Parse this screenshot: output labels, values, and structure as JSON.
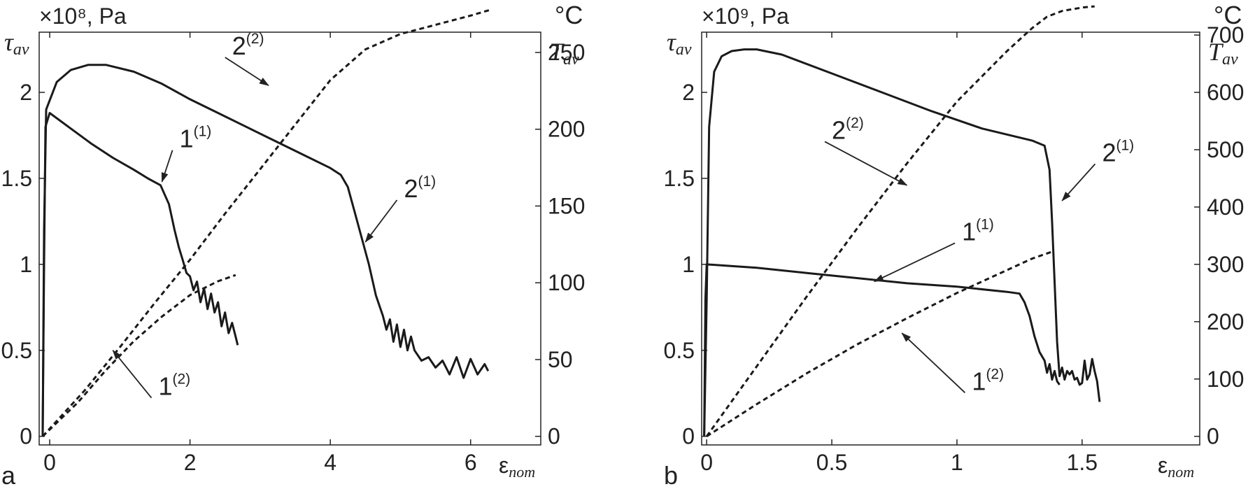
{
  "chart_data": [
    {
      "type": "line",
      "panel_label": "a",
      "left_unit": "×10⁸, Pa",
      "right_unit": "°C",
      "ylabel": "τ_av",
      "y2label": "T_av",
      "xlabel": "ε_nom",
      "xlim": [
        -0.15,
        7.0
      ],
      "ylim": [
        -0.05,
        2.35
      ],
      "y2lim": [
        -5.6,
        263.2
      ],
      "xticks": [
        "0",
        "2",
        "4",
        "6"
      ],
      "yticks": [
        "0",
        "0.5",
        "1",
        "1.5",
        "2"
      ],
      "y2ticks": [
        "0",
        "50",
        "100",
        "150",
        "200",
        "250"
      ],
      "series": [
        {
          "name": "1(1)",
          "axis": "left",
          "style": "solid",
          "x": [
            -0.1,
            -0.08,
            -0.06,
            0.0,
            0.3,
            0.6,
            0.9,
            1.2,
            1.4,
            1.58,
            1.7,
            1.78,
            1.84,
            1.9,
            1.95,
            2.0,
            2.05,
            2.1,
            2.15,
            2.2,
            2.25,
            2.3,
            2.35,
            2.4,
            2.45,
            2.5,
            2.55,
            2.6,
            2.65,
            2.68
          ],
          "y": [
            0.0,
            1.0,
            1.8,
            1.88,
            1.79,
            1.7,
            1.62,
            1.55,
            1.5,
            1.46,
            1.35,
            1.2,
            1.1,
            1.02,
            0.95,
            0.93,
            0.85,
            0.9,
            0.78,
            0.86,
            0.74,
            0.83,
            0.72,
            0.78,
            0.64,
            0.72,
            0.6,
            0.66,
            0.58,
            0.53
          ]
        },
        {
          "name": "2(1)",
          "axis": "left",
          "style": "solid",
          "x": [
            -0.1,
            -0.08,
            -0.05,
            0.1,
            0.3,
            0.55,
            0.8,
            1.2,
            1.6,
            2.0,
            2.4,
            2.8,
            3.2,
            3.6,
            4.0,
            4.15,
            4.25,
            4.35,
            4.45,
            4.55,
            4.65,
            4.75,
            4.8,
            4.85,
            4.9,
            4.95,
            5.0,
            5.05,
            5.1,
            5.15,
            5.2,
            5.3,
            5.4,
            5.5,
            5.6,
            5.7,
            5.8,
            5.9,
            6.0,
            6.1,
            6.2,
            6.25
          ],
          "y": [
            0.0,
            1.2,
            1.9,
            2.06,
            2.13,
            2.16,
            2.16,
            2.12,
            2.05,
            1.96,
            1.88,
            1.8,
            1.72,
            1.64,
            1.56,
            1.52,
            1.45,
            1.3,
            1.15,
            1.0,
            0.82,
            0.7,
            0.62,
            0.68,
            0.55,
            0.65,
            0.52,
            0.62,
            0.5,
            0.58,
            0.5,
            0.44,
            0.46,
            0.4,
            0.44,
            0.36,
            0.46,
            0.34,
            0.45,
            0.36,
            0.42,
            0.38
          ]
        },
        {
          "name": "1(2)",
          "axis": "right",
          "style": "dashed",
          "x": [
            -0.1,
            0.4,
            0.8,
            1.2,
            1.6,
            2.0,
            2.4,
            2.65
          ],
          "y": [
            0,
            22,
            43,
            62,
            78,
            92,
            101,
            105
          ]
        },
        {
          "name": "2(2)",
          "axis": "right",
          "style": "dashed",
          "x": [
            -0.1,
            0.5,
            1.0,
            1.5,
            2.0,
            2.5,
            3.0,
            3.5,
            4.0,
            4.5,
            5.0,
            5.5,
            6.0,
            6.3
          ],
          "y": [
            0,
            30,
            58,
            87,
            115,
            145,
            174,
            203,
            232,
            252,
            262,
            268,
            274,
            278
          ]
        }
      ],
      "annotations": [
        {
          "label": "1",
          "sup": "(1)",
          "tx": 1.85,
          "ty": 1.68,
          "ax": 1.6,
          "ay": 1.48
        },
        {
          "label": "2",
          "sup": "(1)",
          "tx": 5.05,
          "ty": 1.39,
          "ax": 4.5,
          "ay": 1.13
        },
        {
          "label": "2",
          "sup": "(2)",
          "tx": 2.6,
          "ty": 2.22,
          "ax": 3.12,
          "ay": 2.04
        },
        {
          "label": "1",
          "sup": "(2)",
          "tx": 1.55,
          "ty": 0.24,
          "ax": 0.9,
          "ay": 0.5
        }
      ]
    },
    {
      "type": "line",
      "panel_label": "b",
      "left_unit": "×10⁹, Pa",
      "right_unit": "°C",
      "ylabel": "τ_av",
      "y2label": "T_av",
      "xlabel": "ε_nom",
      "xlim": [
        -0.02,
        1.97
      ],
      "ylim": [
        -0.05,
        2.35
      ],
      "y2lim": [
        -15,
        705
      ],
      "xticks": [
        "0",
        "0.5",
        "1",
        "1.5"
      ],
      "yticks": [
        "0",
        "0.5",
        "1",
        "1.5",
        "2"
      ],
      "y2ticks": [
        "0",
        "100",
        "200",
        "300",
        "400",
        "500",
        "600",
        "700"
      ],
      "series": [
        {
          "name": "1(1)",
          "axis": "left",
          "style": "solid",
          "x": [
            -0.01,
            -0.005,
            0.0,
            0.2,
            0.4,
            0.6,
            0.8,
            1.0,
            1.2,
            1.25,
            1.27,
            1.29,
            1.31,
            1.33,
            1.35,
            1.36,
            1.37,
            1.38,
            1.39,
            1.4,
            1.41
          ],
          "y": [
            0.0,
            0.8,
            1.0,
            0.98,
            0.95,
            0.92,
            0.89,
            0.87,
            0.84,
            0.83,
            0.78,
            0.7,
            0.58,
            0.49,
            0.44,
            0.37,
            0.42,
            0.33,
            0.38,
            0.32,
            0.3
          ]
        },
        {
          "name": "2(1)",
          "axis": "left",
          "style": "solid",
          "x": [
            -0.01,
            0.0,
            0.01,
            0.03,
            0.06,
            0.1,
            0.15,
            0.2,
            0.3,
            0.5,
            0.7,
            0.9,
            1.1,
            1.3,
            1.35,
            1.37,
            1.38,
            1.39,
            1.4,
            1.41,
            1.42,
            1.43,
            1.44,
            1.45,
            1.46,
            1.47,
            1.48,
            1.49,
            1.5,
            1.51,
            1.52,
            1.53,
            1.54,
            1.55,
            1.56,
            1.57
          ],
          "y": [
            0.0,
            0.8,
            1.8,
            2.12,
            2.21,
            2.24,
            2.25,
            2.25,
            2.22,
            2.11,
            2.0,
            1.89,
            1.79,
            1.72,
            1.69,
            1.55,
            1.25,
            0.9,
            0.55,
            0.35,
            0.4,
            0.33,
            0.38,
            0.36,
            0.38,
            0.33,
            0.34,
            0.3,
            0.31,
            0.44,
            0.33,
            0.36,
            0.45,
            0.38,
            0.32,
            0.2
          ]
        },
        {
          "name": "1(2)",
          "axis": "right",
          "style": "dashed",
          "x": [
            0.0,
            0.2,
            0.4,
            0.6,
            0.8,
            1.0,
            1.2,
            1.3,
            1.38
          ],
          "y": [
            0,
            56,
            110,
            160,
            206,
            250,
            290,
            310,
            322
          ]
        },
        {
          "name": "2(2)",
          "axis": "right",
          "style": "dashed",
          "x": [
            0.0,
            0.2,
            0.4,
            0.6,
            0.8,
            1.0,
            1.2,
            1.3,
            1.36,
            1.42,
            1.5,
            1.55
          ],
          "y": [
            0,
            122,
            244,
            362,
            476,
            584,
            672,
            712,
            732,
            742,
            748,
            750
          ]
        }
      ],
      "annotations": [
        {
          "label": "2",
          "sup": "(1)",
          "tx": 1.58,
          "ty": 1.6,
          "ax": 1.42,
          "ay": 1.37
        },
        {
          "label": "2",
          "sup": "(2)",
          "tx": 0.5,
          "ty": 1.73,
          "ax": 0.8,
          "ay": 1.46
        },
        {
          "label": "1",
          "sup": "(1)",
          "tx": 1.02,
          "ty": 1.14,
          "ax": 0.67,
          "ay": 0.9
        },
        {
          "label": "1",
          "sup": "(2)",
          "tx": 1.06,
          "ty": 0.27,
          "ax": 0.78,
          "ay": 0.6
        }
      ]
    }
  ]
}
